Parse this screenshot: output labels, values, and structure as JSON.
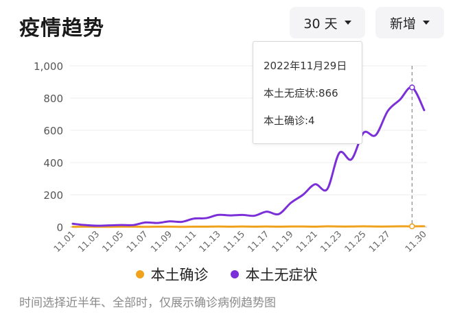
{
  "header": {
    "title": "疫情趋势",
    "range_label": "30 天",
    "mode_label": "新增"
  },
  "icons": {
    "dropdown": "caret-down-icon"
  },
  "tooltip": {
    "date": "2022年11月29日",
    "line1": "本土无症状:866",
    "line2": "本土确诊:4"
  },
  "legend": [
    {
      "name": "本土确诊",
      "color": "#f0a21d"
    },
    {
      "name": "本土无症状",
      "color": "#7a2fd8"
    }
  ],
  "footnote": "时间选择近半年、全部时，仅展示确诊病例趋势图",
  "chart_data": {
    "type": "line",
    "x": [
      "11.01",
      "11.02",
      "11.03",
      "11.04",
      "11.05",
      "11.06",
      "11.07",
      "11.08",
      "11.09",
      "11.10",
      "11.11",
      "11.12",
      "11.13",
      "11.14",
      "11.15",
      "11.16",
      "11.17",
      "11.18",
      "11.19",
      "11.20",
      "11.21",
      "11.22",
      "11.23",
      "11.24",
      "11.25",
      "11.26",
      "11.27",
      "11.28",
      "11.29",
      "11.30"
    ],
    "x_tick_labels": [
      "11.01",
      "11.03",
      "11.05",
      "11.07",
      "11.09",
      "11.11",
      "11.13",
      "11.15",
      "11.17",
      "11.19",
      "11.21",
      "11.23",
      "11.25",
      "11.27",
      "11.30"
    ],
    "ylim": [
      0,
      1000
    ],
    "y_ticks": [
      0,
      200,
      400,
      600,
      800,
      1000
    ],
    "y_tick_labels": [
      "0",
      "200",
      "400",
      "600",
      "800",
      "1,000"
    ],
    "series": [
      {
        "name": "本土确诊",
        "color": "#f0a21d",
        "values": [
          1,
          2,
          1,
          1,
          2,
          2,
          1,
          2,
          2,
          1,
          2,
          2,
          3,
          2,
          3,
          2,
          3,
          2,
          3,
          3,
          2,
          4,
          3,
          3,
          4,
          3,
          3,
          4,
          4,
          5
        ]
      },
      {
        "name": "本土无症状",
        "color": "#7a2fd8",
        "values": [
          20,
          12,
          8,
          10,
          12,
          12,
          28,
          25,
          35,
          32,
          52,
          55,
          75,
          72,
          75,
          70,
          95,
          80,
          150,
          200,
          265,
          235,
          460,
          420,
          585,
          570,
          720,
          790,
          866,
          725
        ]
      }
    ],
    "highlight": {
      "x": "11.29",
      "values": [
        4,
        866
      ]
    }
  }
}
